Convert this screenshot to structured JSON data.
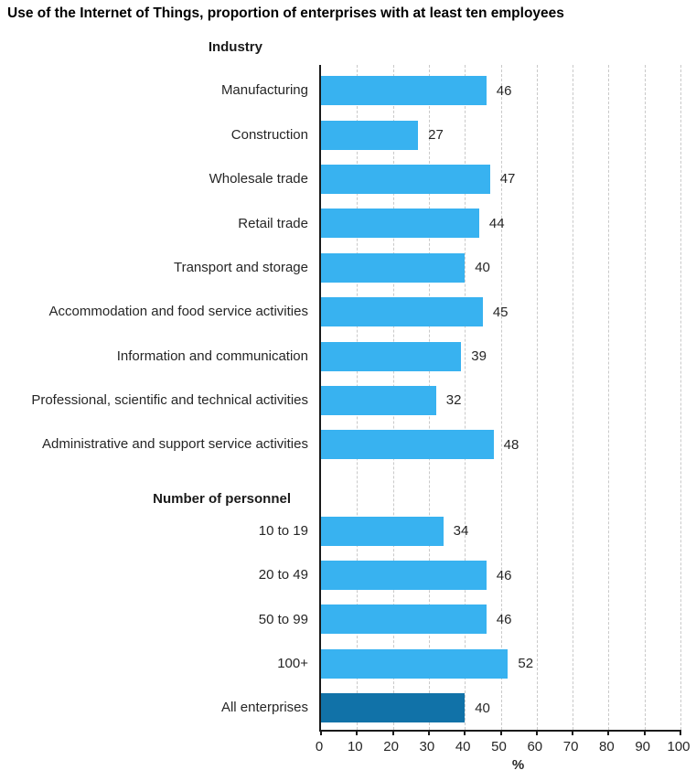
{
  "colors": {
    "bar": "#38b2f0",
    "bar_highlight": "#1172a8",
    "grid": "#c9c9c9",
    "axis": "#1a1a1a",
    "text": "#262626"
  },
  "chart_data": {
    "type": "bar",
    "orientation": "horizontal",
    "title": "Use of the Internet of Things, proportion of enterprises with at least ten employees",
    "xlabel": "%",
    "xlim": [
      0,
      100
    ],
    "xticks": [
      0,
      10,
      20,
      30,
      40,
      50,
      60,
      70,
      80,
      90,
      100
    ],
    "grid": "vertical-dashed",
    "legend": "none",
    "value_labels": "shown at bar end",
    "groups": [
      {
        "header": "Industry",
        "rows": [
          {
            "label": "Manufacturing",
            "value": 46
          },
          {
            "label": "Construction",
            "value": 27
          },
          {
            "label": "Wholesale trade",
            "value": 47
          },
          {
            "label": "Retail trade",
            "value": 44
          },
          {
            "label": "Transport and storage",
            "value": 40
          },
          {
            "label": "Accommodation and food service activities",
            "value": 45
          },
          {
            "label": "Information and communication",
            "value": 39
          },
          {
            "label": "Professional, scientific and technical activities",
            "value": 32
          },
          {
            "label": "Administrative and support service activities",
            "value": 48
          }
        ]
      },
      {
        "header": "Number of personnel",
        "rows": [
          {
            "label": "10 to 19",
            "value": 34
          },
          {
            "label": "20 to 49",
            "value": 46
          },
          {
            "label": "50 to 99",
            "value": 46
          },
          {
            "label": "100+",
            "value": 52
          },
          {
            "label": "All enterprises",
            "value": 40,
            "highlight": true
          }
        ]
      }
    ]
  }
}
